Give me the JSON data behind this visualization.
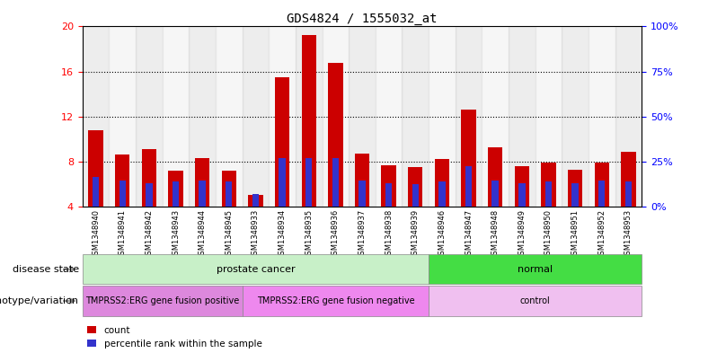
{
  "title": "GDS4824 / 1555032_at",
  "samples": [
    "GSM1348940",
    "GSM1348941",
    "GSM1348942",
    "GSM1348943",
    "GSM1348944",
    "GSM1348945",
    "GSM1348933",
    "GSM1348934",
    "GSM1348935",
    "GSM1348936",
    "GSM1348937",
    "GSM1348938",
    "GSM1348939",
    "GSM1348946",
    "GSM1348947",
    "GSM1348948",
    "GSM1348949",
    "GSM1348950",
    "GSM1348951",
    "GSM1348952",
    "GSM1348953"
  ],
  "count_values": [
    10.8,
    8.6,
    9.1,
    7.2,
    8.3,
    7.2,
    5.0,
    15.5,
    19.2,
    16.8,
    8.7,
    7.7,
    7.5,
    8.2,
    12.6,
    9.3,
    7.6,
    7.9,
    7.3,
    7.9,
    8.9
  ],
  "percentile_values": [
    6.6,
    6.3,
    6.1,
    6.2,
    6.3,
    6.2,
    5.1,
    8.3,
    8.3,
    8.3,
    6.3,
    6.1,
    6.0,
    6.2,
    7.6,
    6.3,
    6.1,
    6.2,
    6.1,
    6.3,
    6.2
  ],
  "ylim_left": [
    4,
    20
  ],
  "ylim_right": [
    0,
    100
  ],
  "yticks_left": [
    4,
    8,
    12,
    16,
    20
  ],
  "yticks_right": [
    0,
    25,
    50,
    75,
    100
  ],
  "bar_color": "#cc0000",
  "percentile_color": "#3333cc",
  "grid_color": "#000000",
  "title_fontsize": 10,
  "disease_state_groups": [
    {
      "label": "prostate cancer",
      "start": 0,
      "end": 13,
      "color": "#c8f0c8"
    },
    {
      "label": "normal",
      "start": 13,
      "end": 21,
      "color": "#44dd44"
    }
  ],
  "genotype_groups": [
    {
      "label": "TMPRSS2:ERG gene fusion positive",
      "start": 0,
      "end": 6,
      "color": "#dd88dd"
    },
    {
      "label": "TMPRSS2:ERG gene fusion negative",
      "start": 6,
      "end": 13,
      "color": "#ee88ee"
    },
    {
      "label": "control",
      "start": 13,
      "end": 21,
      "color": "#f0c0f0"
    }
  ],
  "disease_state_label": "disease state",
  "genotype_label": "genotype/variation",
  "legend_count": "count",
  "legend_percentile": "percentile rank within the sample",
  "bar_width": 0.55,
  "pct_bar_width": 0.25
}
